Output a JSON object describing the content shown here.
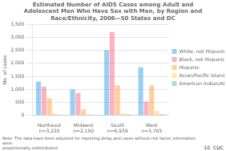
{
  "chart_data": {
    "type": "bar",
    "title": "Estimated Number of AIDS Cases among Adult and\nAdolescent Men Who Have Sex with Men, by Region and\nRace/Ethnicity, 2006—50 States and DC",
    "ylabel": "No. of cases",
    "categories": [
      "Northeast\nn=3,220",
      "Midwest\nn=2,150",
      "South\nn=6,939",
      "West\nn=3,765"
    ],
    "series": [
      {
        "name": "White, not Hispanic",
        "values": [
          1300,
          1000,
          2500,
          1850
        ]
      },
      {
        "name": "Black, not Hispanic",
        "values": [
          1100,
          850,
          3200,
          530
        ]
      },
      {
        "name": "Hispanic",
        "values": [
          650,
          230,
          1150,
          1150
        ]
      },
      {
        "name": "Asian/Pacific Islander",
        "values": [
          80,
          50,
          75,
          175
        ]
      },
      {
        "name": "American Indian/Alaska Native",
        "values": [
          30,
          20,
          40,
          40
        ]
      }
    ],
    "ylim": [
      0,
      3500
    ],
    "yticks": [
      0,
      500,
      {
        "value": 1000,
        "label": "1,000"
      },
      {
        "value": 1500,
        "label": "1,500"
      },
      {
        "value": 2000,
        "label": "2,000"
      },
      {
        "value": 2500,
        "label": "2,500"
      },
      {
        "value": 3000,
        "label": "3,000"
      },
      {
        "value": 3500,
        "label": "3,500"
      }
    ],
    "grid": true,
    "legend": "right",
    "annotations": [
      "Note: The data have been adjusted for reporting delay and cases without risk factor information were\nproportionally redistributed.",
      "10",
      "CDC"
    ]
  }
}
